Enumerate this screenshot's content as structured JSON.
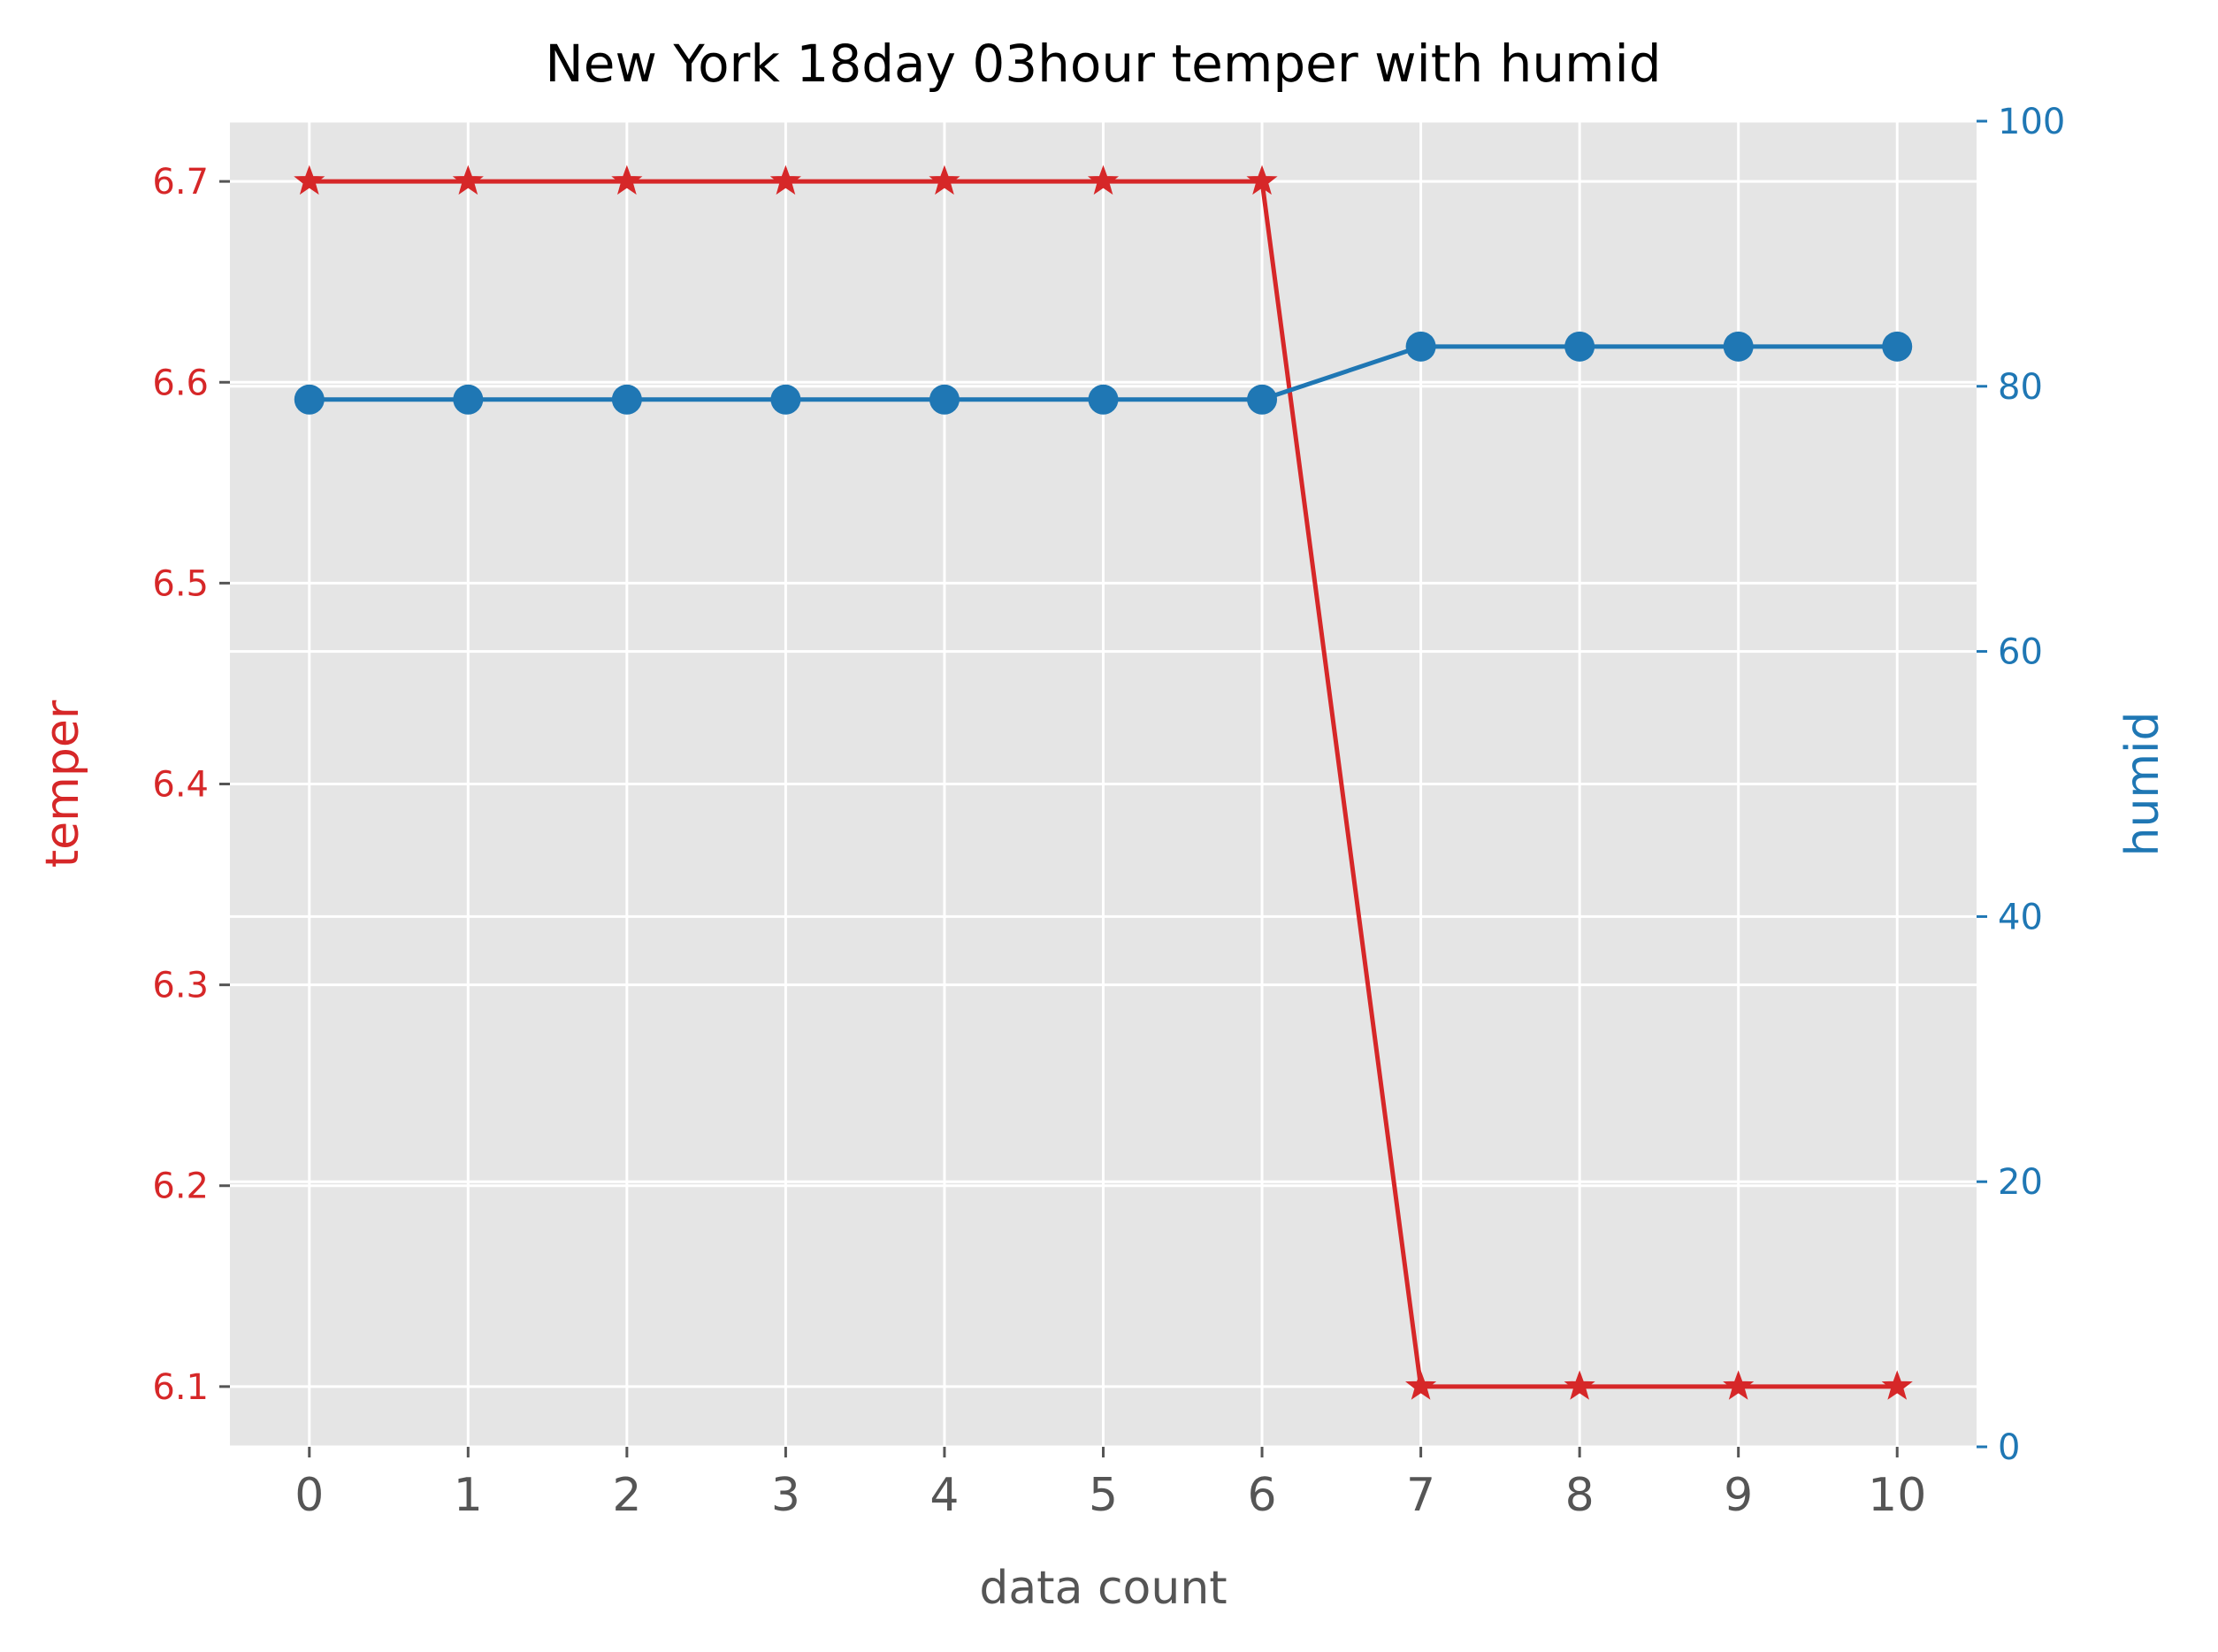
{
  "chart_data": {
    "type": "line",
    "title": "New York 18day 03hour temper with humid",
    "xlabel": "data count",
    "x": [
      0,
      1,
      2,
      3,
      4,
      5,
      6,
      7,
      8,
      9,
      10
    ],
    "x_ticks": [
      "0",
      "1",
      "2",
      "3",
      "4",
      "5",
      "6",
      "7",
      "8",
      "9",
      "10"
    ],
    "grid": true,
    "style": "ggplot",
    "left_axis": {
      "label": "temper",
      "color": "#d62728",
      "ylim": [
        6.07,
        6.73
      ],
      "ticks": [
        6.1,
        6.2,
        6.3,
        6.4,
        6.5,
        6.6,
        6.7
      ],
      "tick_labels": [
        "6.1",
        "6.2",
        "6.3",
        "6.4",
        "6.5",
        "6.6",
        "6.7"
      ]
    },
    "right_axis": {
      "label": "humid",
      "color": "#1f77b4",
      "ylim": [
        0,
        100
      ],
      "ticks": [
        0,
        20,
        40,
        60,
        80,
        100
      ],
      "tick_labels": [
        "0",
        "20",
        "40",
        "60",
        "80",
        "100"
      ]
    },
    "series": [
      {
        "axis": "left",
        "color": "#d62728",
        "marker": "star",
        "values": [
          6.7,
          6.7,
          6.7,
          6.7,
          6.7,
          6.7,
          6.7,
          6.1,
          6.1,
          6.1,
          6.1
        ]
      },
      {
        "axis": "right",
        "color": "#1f77b4",
        "marker": "circle",
        "values": [
          79,
          79,
          79,
          79,
          79,
          79,
          79,
          83,
          83,
          83,
          83
        ]
      }
    ]
  }
}
